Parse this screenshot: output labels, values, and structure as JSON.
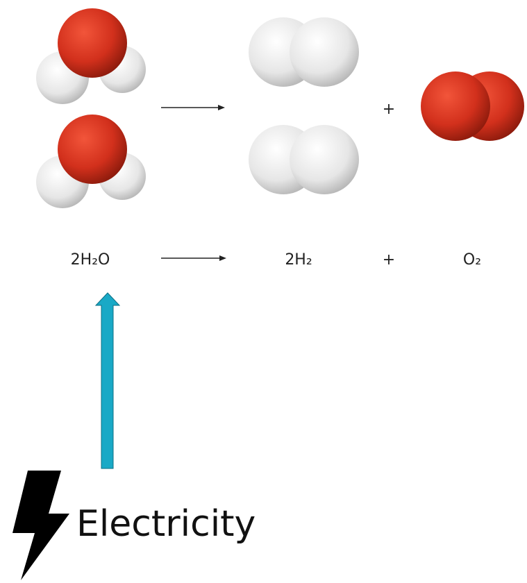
{
  "molecules_row": {
    "plus": "+"
  },
  "equation": {
    "reactant": "2H₂O",
    "product_1": "2H₂",
    "plus": "+",
    "product_2": "O₂"
  },
  "energy": {
    "label": "Electricity"
  }
}
